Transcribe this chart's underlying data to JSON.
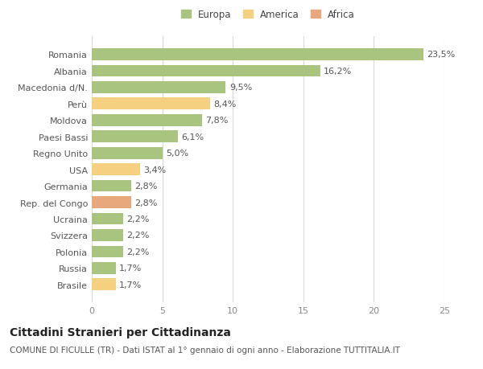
{
  "categories": [
    "Romania",
    "Albania",
    "Macedonia d/N.",
    "Perù",
    "Moldova",
    "Paesi Bassi",
    "Regno Unito",
    "USA",
    "Germania",
    "Rep. del Congo",
    "Ucraina",
    "Svizzera",
    "Polonia",
    "Russia",
    "Brasile"
  ],
  "values": [
    23.5,
    16.2,
    9.5,
    8.4,
    7.8,
    6.1,
    5.0,
    3.4,
    2.8,
    2.8,
    2.2,
    2.2,
    2.2,
    1.7,
    1.7
  ],
  "labels": [
    "23,5%",
    "16,2%",
    "9,5%",
    "8,4%",
    "7,8%",
    "6,1%",
    "5,0%",
    "3,4%",
    "2,8%",
    "2,8%",
    "2,2%",
    "2,2%",
    "2,2%",
    "1,7%",
    "1,7%"
  ],
  "continents": [
    "Europa",
    "Europa",
    "Europa",
    "America",
    "Europa",
    "Europa",
    "Europa",
    "America",
    "Europa",
    "Africa",
    "Europa",
    "Europa",
    "Europa",
    "Europa",
    "America"
  ],
  "colors": {
    "Europa": "#a8c47e",
    "America": "#f5d080",
    "Africa": "#e8a87c"
  },
  "legend_labels": [
    "Europa",
    "America",
    "Africa"
  ],
  "title": "Cittadini Stranieri per Cittadinanza",
  "subtitle": "COMUNE DI FICULLE (TR) - Dati ISTAT al 1° gennaio di ogni anno - Elaborazione TUTTITALIA.IT",
  "xlim": [
    0,
    25
  ],
  "xticks": [
    0,
    5,
    10,
    15,
    20,
    25
  ],
  "bg_color": "#ffffff",
  "grid_color": "#d8d8d8",
  "bar_height": 0.72,
  "title_fontsize": 10,
  "subtitle_fontsize": 7.5,
  "label_fontsize": 8,
  "tick_fontsize": 8,
  "legend_fontsize": 8.5
}
